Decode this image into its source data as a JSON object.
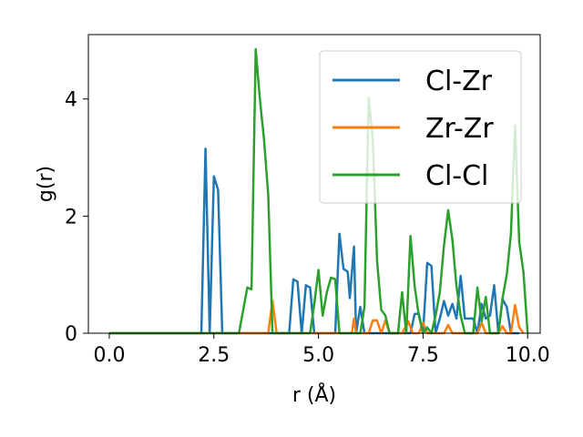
{
  "chart_data": {
    "type": "line",
    "title": "",
    "xlabel": "r (Å)",
    "ylabel": "g(r)",
    "xlim": [
      -0.5,
      10.3
    ],
    "ylim": [
      0,
      5.1
    ],
    "x_ticks": [
      0.0,
      2.5,
      5.0,
      7.5,
      10.0
    ],
    "x_tick_labels": [
      "0.0",
      "2.5",
      "5.0",
      "7.5",
      "10.0"
    ],
    "y_ticks": [
      0,
      2,
      4
    ],
    "y_tick_labels": [
      "0",
      "2",
      "4"
    ],
    "grid": false,
    "legend_position": "top-right",
    "series": [
      {
        "name": "Cl-Zr",
        "color": "#1f77b4",
        "points": [
          [
            0,
            0
          ],
          [
            2.2,
            0
          ],
          [
            2.3,
            3.15
          ],
          [
            2.4,
            0
          ],
          [
            2.5,
            2.68
          ],
          [
            2.6,
            2.45
          ],
          [
            2.7,
            0
          ],
          [
            4.3,
            0
          ],
          [
            4.4,
            0.92
          ],
          [
            4.5,
            0.88
          ],
          [
            4.6,
            0
          ],
          [
            4.7,
            0.82
          ],
          [
            4.8,
            0.78
          ],
          [
            4.9,
            0
          ],
          [
            5.4,
            0
          ],
          [
            5.5,
            1.7
          ],
          [
            5.6,
            1.1
          ],
          [
            5.7,
            1.05
          ],
          [
            5.75,
            0.6
          ],
          [
            5.85,
            1.48
          ],
          [
            5.9,
            0
          ],
          [
            6.0,
            0.45
          ],
          [
            6.1,
            0
          ],
          [
            7.2,
            0
          ],
          [
            7.3,
            0.33
          ],
          [
            7.4,
            0.33
          ],
          [
            7.5,
            0
          ],
          [
            7.6,
            1.2
          ],
          [
            7.7,
            1.15
          ],
          [
            7.8,
            0
          ],
          [
            7.9,
            0.25
          ],
          [
            8.0,
            0.55
          ],
          [
            8.1,
            0.3
          ],
          [
            8.2,
            0.5
          ],
          [
            8.3,
            0.25
          ],
          [
            8.4,
            0.98
          ],
          [
            8.5,
            0.25
          ],
          [
            8.6,
            0.25
          ],
          [
            8.7,
            0.25
          ],
          [
            8.8,
            0
          ],
          [
            8.9,
            0.5
          ],
          [
            9.0,
            0.25
          ],
          [
            9.1,
            0.3
          ],
          [
            9.2,
            0.82
          ],
          [
            9.3,
            0
          ],
          [
            9.4,
            0.58
          ],
          [
            9.5,
            0.45
          ],
          [
            9.6,
            0
          ],
          [
            9.8,
            0
          ]
        ]
      },
      {
        "name": "Zr-Zr",
        "color": "#ff7f0e",
        "points": [
          [
            0,
            0
          ],
          [
            3.8,
            0
          ],
          [
            3.9,
            0.56
          ],
          [
            4.0,
            0
          ],
          [
            5.8,
            0
          ],
          [
            5.85,
            0.25
          ],
          [
            5.9,
            0
          ],
          [
            6.2,
            0
          ],
          [
            6.3,
            0.22
          ],
          [
            6.4,
            0.22
          ],
          [
            6.5,
            0
          ],
          [
            6.6,
            0.22
          ],
          [
            6.7,
            0
          ],
          [
            7.0,
            0
          ],
          [
            7.15,
            0.2
          ],
          [
            7.25,
            0
          ],
          [
            7.4,
            0
          ],
          [
            7.5,
            0.18
          ],
          [
            7.6,
            0
          ],
          [
            8.0,
            0
          ],
          [
            8.1,
            0.14
          ],
          [
            8.2,
            0
          ],
          [
            8.8,
            0
          ],
          [
            8.9,
            0.18
          ],
          [
            9.0,
            0
          ],
          [
            9.3,
            0
          ],
          [
            9.4,
            0.12
          ],
          [
            9.5,
            0
          ],
          [
            9.6,
            0
          ],
          [
            9.7,
            0.48
          ],
          [
            9.8,
            0.1
          ],
          [
            9.9,
            0
          ]
        ]
      },
      {
        "name": "Cl-Cl",
        "color": "#2ca02c",
        "points": [
          [
            0,
            0
          ],
          [
            3.1,
            0
          ],
          [
            3.3,
            0.78
          ],
          [
            3.4,
            0.75
          ],
          [
            3.5,
            4.85
          ],
          [
            3.6,
            4.0
          ],
          [
            3.7,
            3.3
          ],
          [
            3.8,
            2.35
          ],
          [
            3.9,
            0
          ],
          [
            4.8,
            0
          ],
          [
            4.9,
            0.5
          ],
          [
            5.0,
            1.08
          ],
          [
            5.1,
            0.3
          ],
          [
            5.2,
            0.7
          ],
          [
            5.3,
            0.95
          ],
          [
            5.4,
            0.92
          ],
          [
            5.5,
            0
          ],
          [
            6.0,
            0
          ],
          [
            6.1,
            0.45
          ],
          [
            6.2,
            4.02
          ],
          [
            6.3,
            3.3
          ],
          [
            6.4,
            1.25
          ],
          [
            6.5,
            0.4
          ],
          [
            6.6,
            0.3
          ],
          [
            6.7,
            0
          ],
          [
            6.9,
            0
          ],
          [
            7.0,
            0.7
          ],
          [
            7.1,
            0
          ],
          [
            7.2,
            1.66
          ],
          [
            7.3,
            0.8
          ],
          [
            7.4,
            0.3
          ],
          [
            7.5,
            0
          ],
          [
            7.6,
            0.1
          ],
          [
            7.7,
            0
          ],
          [
            7.8,
            0.3
          ],
          [
            7.9,
            0.7
          ],
          [
            8.0,
            1.5
          ],
          [
            8.1,
            2.1
          ],
          [
            8.2,
            1.6
          ],
          [
            8.3,
            0.8
          ],
          [
            8.4,
            0.3
          ],
          [
            8.5,
            0
          ],
          [
            8.7,
            0
          ],
          [
            8.8,
            0.78
          ],
          [
            8.9,
            0.2
          ],
          [
            9.0,
            0.62
          ],
          [
            9.1,
            0
          ],
          [
            9.3,
            0
          ],
          [
            9.4,
            0.6
          ],
          [
            9.5,
            1.0
          ],
          [
            9.6,
            1.7
          ],
          [
            9.7,
            3.55
          ],
          [
            9.8,
            1.55
          ],
          [
            9.9,
            1.05
          ],
          [
            10.0,
            0
          ]
        ]
      }
    ]
  }
}
